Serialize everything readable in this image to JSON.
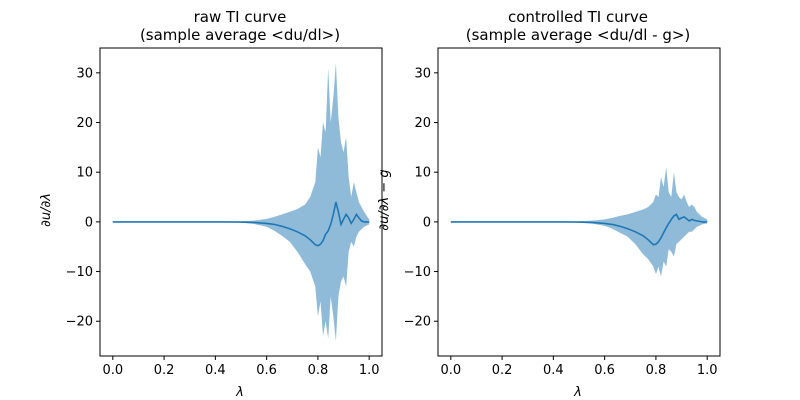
{
  "chart_data": [
    {
      "type": "line",
      "title": [
        "raw TI curve",
        "(sample average <du/dl>)"
      ],
      "xlabel": "λ",
      "ylabel": "∂u/∂λ",
      "xlim": [
        -0.05,
        1.05
      ],
      "ylim": [
        -27,
        35
      ],
      "xticks": [
        0.0,
        0.2,
        0.4,
        0.6,
        0.8,
        1.0
      ],
      "xtick_labels": [
        "0.0",
        "0.2",
        "0.4",
        "0.6",
        "0.8",
        "1.0"
      ],
      "yticks": [
        -20,
        -10,
        0,
        10,
        20,
        30
      ],
      "ytick_labels": [
        "−20",
        "−10",
        "0",
        "10",
        "20",
        "30"
      ],
      "grid": false,
      "colors": {
        "line": "#1f77b4",
        "band": "#1f77b4"
      },
      "series": [
        {
          "x": [
            0.0,
            0.1,
            0.2,
            0.3,
            0.4,
            0.45,
            0.5,
            0.55,
            0.6,
            0.63,
            0.66,
            0.69,
            0.72,
            0.75,
            0.77,
            0.79,
            0.8,
            0.81,
            0.82,
            0.83,
            0.84,
            0.85,
            0.86,
            0.87,
            0.88,
            0.89,
            0.9,
            0.91,
            0.92,
            0.93,
            0.94,
            0.95,
            0.96,
            0.97,
            0.98,
            1.0
          ],
          "y": [
            0,
            0,
            0,
            0,
            0,
            0,
            -0.05,
            -0.1,
            -0.3,
            -0.5,
            -0.9,
            -1.4,
            -2.0,
            -2.8,
            -3.6,
            -4.6,
            -4.8,
            -4.5,
            -3.8,
            -2.5,
            -1.8,
            -0.5,
            1.5,
            4.0,
            2.0,
            -0.5,
            0.5,
            1.5,
            0.8,
            -0.3,
            0.5,
            1.5,
            0.8,
            0.2,
            0.0,
            0.0
          ]
        }
      ],
      "band": {
        "upper": [
          0,
          0,
          0,
          0,
          0,
          0.05,
          0.1,
          0.25,
          0.6,
          1.0,
          1.5,
          2.0,
          2.6,
          3.5,
          5.0,
          8.0,
          15.0,
          13.0,
          20.0,
          18.0,
          31.0,
          20.0,
          25.0,
          32.0,
          21.0,
          16.0,
          14.0,
          17.0,
          9.0,
          5.0,
          8.0,
          6.0,
          4.0,
          3.0,
          2.0,
          0.5
        ],
        "lower": [
          0,
          0,
          0,
          0,
          0,
          -0.05,
          -0.15,
          -0.4,
          -1.0,
          -1.8,
          -2.8,
          -4.0,
          -6.0,
          -8.5,
          -10.0,
          -13.0,
          -19.0,
          -16.0,
          -23.0,
          -20.0,
          -23.5,
          -15.0,
          -19.0,
          -24.0,
          -15.0,
          -12.0,
          -11.0,
          -13.0,
          -6.0,
          -4.0,
          -5.0,
          -3.0,
          -2.0,
          -1.5,
          -1.0,
          -0.5
        ]
      }
    },
    {
      "type": "line",
      "title": [
        "controlled TI curve",
        "(sample average <du/dl - g>)"
      ],
      "xlabel": "λ",
      "ylabel": "∂u/∂λ − g",
      "xlim": [
        -0.05,
        1.05
      ],
      "ylim": [
        -27,
        35
      ],
      "xticks": [
        0.0,
        0.2,
        0.4,
        0.6,
        0.8,
        1.0
      ],
      "xtick_labels": [
        "0.0",
        "0.2",
        "0.4",
        "0.6",
        "0.8",
        "1.0"
      ],
      "yticks": [
        -20,
        -10,
        0,
        10,
        20,
        30
      ],
      "ytick_labels": [
        "−20",
        "−10",
        "0",
        "10",
        "20",
        "30"
      ],
      "grid": false,
      "colors": {
        "line": "#1f77b4",
        "band": "#1f77b4"
      },
      "series": [
        {
          "x": [
            0.0,
            0.1,
            0.2,
            0.3,
            0.4,
            0.45,
            0.5,
            0.55,
            0.6,
            0.63,
            0.66,
            0.69,
            0.72,
            0.75,
            0.77,
            0.79,
            0.8,
            0.81,
            0.82,
            0.83,
            0.84,
            0.85,
            0.86,
            0.87,
            0.88,
            0.89,
            0.9,
            0.91,
            0.92,
            0.93,
            0.94,
            0.95,
            0.96,
            0.97,
            0.98,
            1.0
          ],
          "y": [
            0,
            0,
            0,
            0,
            0,
            0,
            -0.05,
            -0.1,
            -0.3,
            -0.5,
            -0.9,
            -1.4,
            -2.0,
            -2.8,
            -3.6,
            -4.6,
            -4.5,
            -4.0,
            -3.2,
            -2.2,
            -1.2,
            -0.3,
            0.5,
            1.2,
            1.5,
            0.5,
            0.8,
            1.0,
            0.6,
            0.2,
            0.5,
            0.3,
            0.2,
            0.1,
            0.0,
            0.0
          ]
        }
      ],
      "band": {
        "upper": [
          0,
          0,
          0,
          0,
          0,
          0.05,
          0.1,
          0.25,
          0.5,
          0.8,
          1.2,
          1.5,
          2.0,
          2.5,
          3.0,
          4.0,
          5.5,
          5.0,
          9.0,
          7.0,
          11.0,
          6.0,
          5.0,
          10.0,
          6.0,
          5.0,
          4.5,
          5.5,
          4.0,
          3.0,
          3.5,
          3.0,
          2.0,
          1.5,
          1.0,
          0.5
        ],
        "lower": [
          0,
          0,
          0,
          0,
          0,
          -0.05,
          -0.15,
          -0.35,
          -0.8,
          -1.4,
          -2.2,
          -3.0,
          -4.5,
          -6.5,
          -7.5,
          -9.0,
          -10.5,
          -9.0,
          -11.0,
          -8.0,
          -9.0,
          -5.5,
          -6.0,
          -7.0,
          -4.5,
          -4.0,
          -3.5,
          -3.0,
          -2.5,
          -2.0,
          -2.0,
          -1.5,
          -1.0,
          -0.8,
          -0.5,
          -0.3
        ]
      }
    }
  ]
}
